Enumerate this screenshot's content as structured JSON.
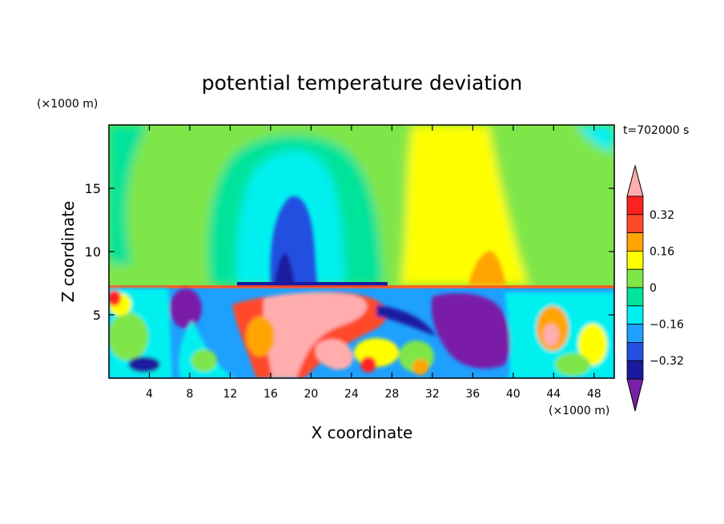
{
  "chart_data": {
    "type": "heatmap",
    "title": "potential temperature deviation",
    "xlabel": "X coordinate",
    "ylabel": "Z coordinate",
    "x_units": "(×1000 m)",
    "y_units": "(×1000 m)",
    "time_label": "t=702000 s",
    "xlim": [
      0,
      50
    ],
    "ylim": [
      0,
      20
    ],
    "x_ticks": [
      4,
      8,
      12,
      16,
      20,
      24,
      28,
      32,
      36,
      40,
      44,
      48
    ],
    "y_ticks": [
      5,
      10,
      15
    ],
    "colorbar": {
      "levels": [
        -0.4,
        -0.32,
        -0.24,
        -0.16,
        -0.08,
        0,
        0.08,
        0.16,
        0.24,
        0.32,
        0.4
      ],
      "tick_labels": [
        0.32,
        0.16,
        0,
        -0.16,
        -0.32
      ],
      "colors": [
        "#7a1fa8",
        "#1a1aa0",
        "#2450e0",
        "#1ea0ff",
        "#00f0f0",
        "#00e39a",
        "#7fe648",
        "#ffff00",
        "#ffa400",
        "#ff4a2a",
        "#ff2020",
        "#ffadad"
      ]
    },
    "tropopause_z": 7.2,
    "regions": [
      {
        "x": [
          0,
          50
        ],
        "z": [
          7.2,
          20
        ],
        "value": 0.04
      },
      {
        "x": [
          13,
          26
        ],
        "z": [
          7.5,
          18
        ],
        "value": -0.12
      },
      {
        "x": [
          16,
          22
        ],
        "z": [
          7.5,
          14.5
        ],
        "value": -0.22
      },
      {
        "x": [
          28,
          37
        ],
        "z": [
          7.5,
          20
        ],
        "value": 0.12
      },
      {
        "x": [
          35,
          40
        ],
        "z": [
          7.5,
          10.3
        ],
        "value": 0.2
      },
      {
        "x": [
          14,
          26
        ],
        "z": [
          0,
          7
        ],
        "value": 0.36
      },
      {
        "x": [
          31,
          40
        ],
        "z": [
          0,
          7
        ],
        "value": -0.36
      },
      {
        "x": [
          6,
          10
        ],
        "z": [
          3,
          7
        ],
        "value": -0.36
      }
    ]
  }
}
